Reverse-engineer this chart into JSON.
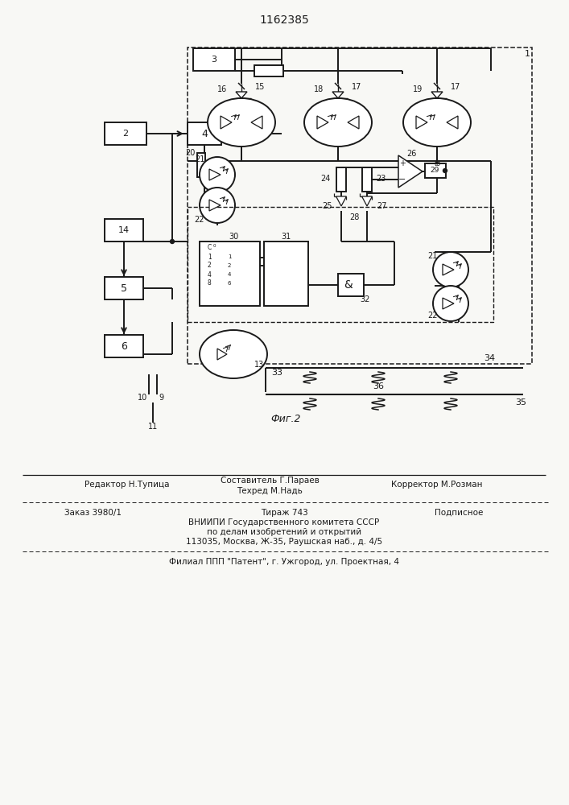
{
  "title": "1162385",
  "fig_label": "Фиг.2",
  "bg": "#f8f8f5",
  "lc": "#1a1a1a",
  "footer": {
    "editor": "Редактор Н.Тупица",
    "composer": "Составитель Г.Параев",
    "techred": "Техред М.Надь",
    "corrector": "Корректор М.Розман",
    "order": "Заказ 3980/1",
    "tirazh": "Тираж 743",
    "podpisnoe": "Подписное",
    "vnipi": "ВНИИПИ Государственного комитета СССР",
    "po_delam": "по делам изобретений и открытий",
    "address": "113035, Москва, Ж-35, Раушская наб., д. 4/5",
    "filial": "Филиал ППП \"Патент\", г. Ужгород, ул. Проектная, 4"
  }
}
